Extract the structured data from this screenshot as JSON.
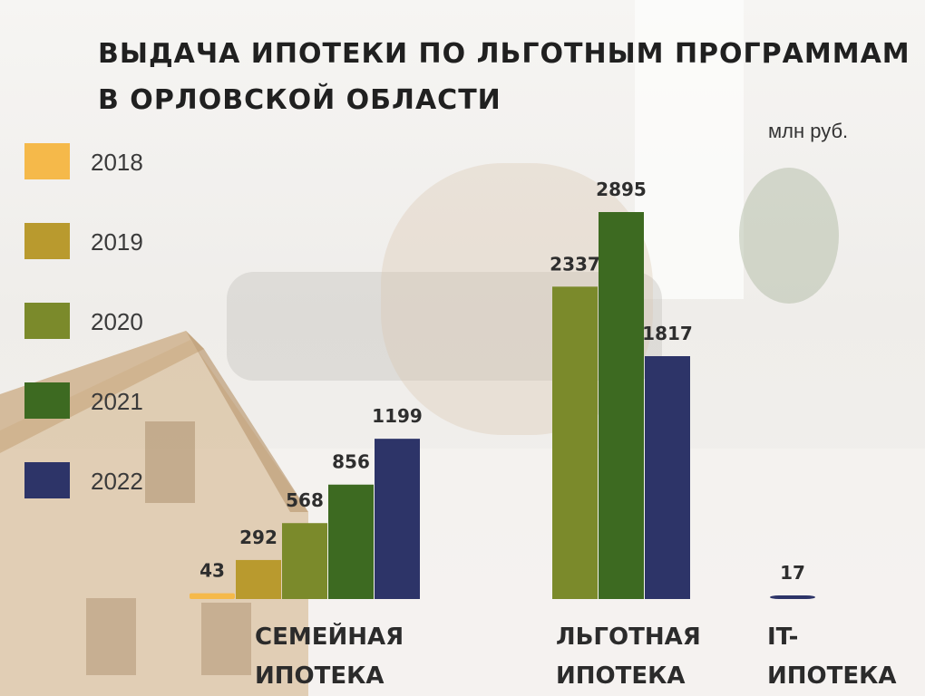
{
  "title": {
    "line1": "ВЫДАЧА ИПОТЕКИ ПО ЛЬГОТНЫМ ПРОГРАММАМ",
    "line2": "В ОРЛОВСКОЙ ОБЛАСТИ"
  },
  "unit": "млн руб.",
  "legend": [
    {
      "label": "2018",
      "color": "#f5b94a"
    },
    {
      "label": "2019",
      "color": "#b99a2e"
    },
    {
      "label": "2020",
      "color": "#7b8a2b"
    },
    {
      "label": "2021",
      "color": "#3d6a21"
    },
    {
      "label": "2022",
      "color": "#2d3468"
    }
  ],
  "categories": [
    {
      "line1": "СЕМЕЙНАЯ",
      "line2": "ИПОТЕКА"
    },
    {
      "line1": "ЛЬГОТНАЯ",
      "line2": "ИПОТЕКА"
    },
    {
      "line1": "IT-",
      "line2": "ИПОТЕКА"
    }
  ],
  "chart_data": {
    "type": "bar",
    "categories": [
      "СЕМЕЙНАЯ ИПОТЕКА",
      "ЛЬГОТНАЯ ИПОТЕКА",
      "IT-ИПОТЕКА"
    ],
    "series": [
      {
        "name": "2018",
        "color": "#f5b94a",
        "values": [
          43,
          null,
          null
        ]
      },
      {
        "name": "2019",
        "color": "#b99a2e",
        "values": [
          292,
          null,
          null
        ]
      },
      {
        "name": "2020",
        "color": "#7b8a2b",
        "values": [
          568,
          2337,
          null
        ]
      },
      {
        "name": "2021",
        "color": "#3d6a21",
        "values": [
          856,
          2895,
          null
        ]
      },
      {
        "name": "2022",
        "color": "#2d3468",
        "values": [
          1199,
          1817,
          17
        ]
      }
    ],
    "data_labels": [
      [
        "43",
        "292",
        "568",
        "856",
        "1199"
      ],
      [
        "2337",
        "2895",
        "1817"
      ],
      [
        "17"
      ]
    ],
    "ylabel": "млн руб.",
    "legend_position": "left",
    "grid": false
  }
}
